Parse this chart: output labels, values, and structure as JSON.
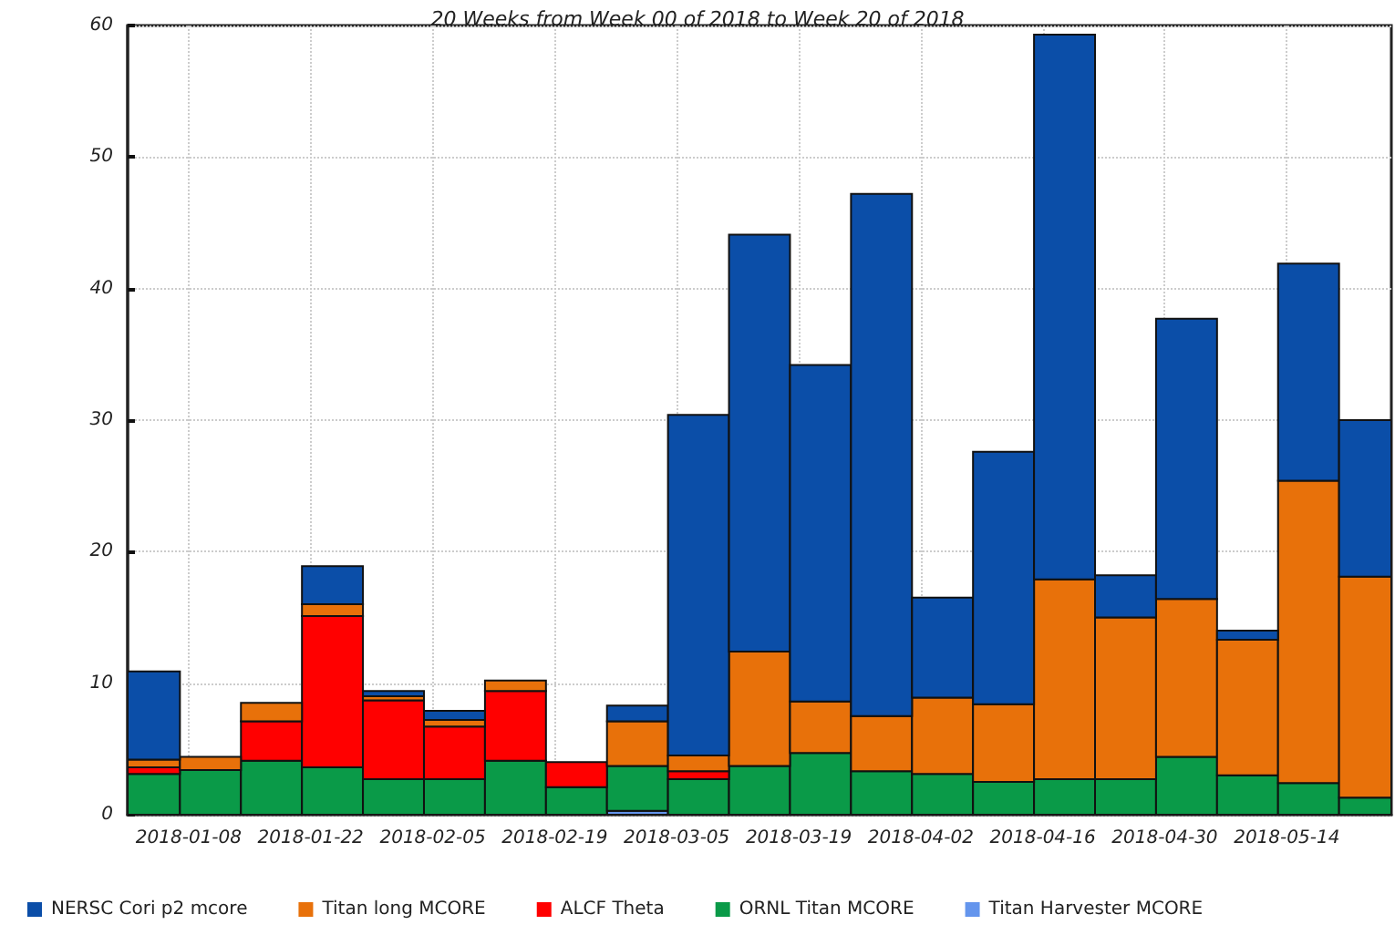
{
  "chart_data": {
    "type": "bar",
    "stacked": true,
    "title": "20 Weeks from Week 00 of 2018 to Week 20 of 2018",
    "x": [
      "2018-01-03T12:00",
      "2018-01-10T12:00",
      "2018-01-17T12:00",
      "2018-01-24T12:00",
      "2018-01-31T12:00",
      "2018-02-07T12:00",
      "2018-02-14T12:00",
      "2018-02-21T12:00",
      "2018-02-28T12:00",
      "2018-03-07T12:00",
      "2018-03-14T12:00",
      "2018-03-21T12:00",
      "2018-03-28T12:00",
      "2018-04-04T12:00",
      "2018-04-11T12:00",
      "2018-04-18T12:00",
      "2018-04-25T12:00",
      "2018-05-02T12:00",
      "2018-05-09T12:00",
      "2018-05-16T12:00",
      "2018-05-23T12:00"
    ],
    "series": [
      {
        "name": "Titan Harvester MCORE",
        "color": "#6495ed",
        "values": [
          null,
          null,
          null,
          null,
          null,
          null,
          null,
          null,
          0.3,
          null,
          null,
          null,
          null,
          null,
          null,
          null,
          null,
          null,
          null,
          null,
          null
        ]
      },
      {
        "name": "ORNL Titan MCORE",
        "color": "#0a9a48",
        "values": [
          3.1,
          3.4,
          4.1,
          3.6,
          2.7,
          2.7,
          4.1,
          2.1,
          3.4,
          2.7,
          3.7,
          4.7,
          3.3,
          3.1,
          2.5,
          2.7,
          2.7,
          4.4,
          3.0,
          2.4,
          1.3
        ]
      },
      {
        "name": "ALCF Theta",
        "color": "#ff0000",
        "values": [
          0.5,
          null,
          3.0,
          11.5,
          6.0,
          4.0,
          5.3,
          1.9,
          null,
          0.6,
          null,
          null,
          null,
          null,
          null,
          null,
          null,
          null,
          null,
          null,
          null
        ]
      },
      {
        "name": "Titan long MCORE",
        "color": "#e8710a",
        "values": [
          0.6,
          1.0,
          1.4,
          0.9,
          0.3,
          0.5,
          0.8,
          null,
          3.4,
          1.2,
          8.7,
          3.9,
          4.2,
          5.8,
          5.9,
          15.2,
          12.3,
          12.0,
          10.3,
          23.0,
          16.8
        ]
      },
      {
        "name": "NERSC Cori p2 mcore",
        "color": "#0b4ea8",
        "values": [
          6.7,
          null,
          null,
          2.9,
          0.4,
          0.7,
          null,
          null,
          1.2,
          25.9,
          31.7,
          25.6,
          39.7,
          7.6,
          19.2,
          41.4,
          3.2,
          21.3,
          0.7,
          16.5,
          11.9
        ]
      }
    ],
    "xlim": [
      "2018-01-01",
      "2018-05-26"
    ],
    "xticks": [
      "2018-01-08",
      "2018-01-22",
      "2018-02-05",
      "2018-02-19",
      "2018-03-05",
      "2018-03-19",
      "2018-04-02",
      "2018-04-16",
      "2018-04-30",
      "2018-05-14"
    ],
    "ylim": [
      0,
      60
    ],
    "yticks": [
      0,
      10,
      20,
      30,
      40,
      50,
      60
    ],
    "grid": true,
    "legend": "bottom"
  }
}
